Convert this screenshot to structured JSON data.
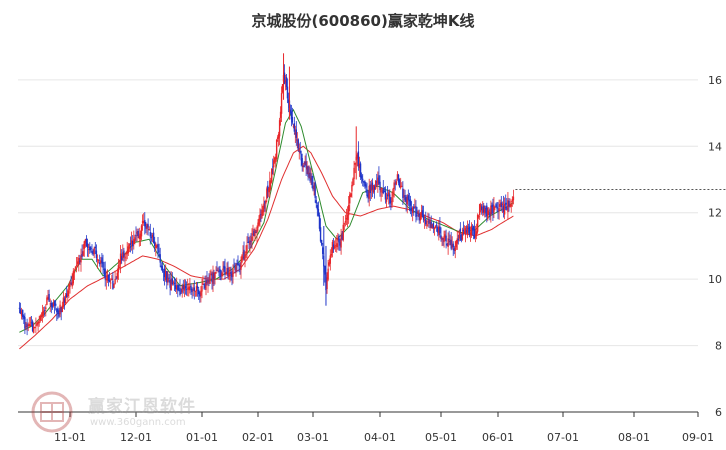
{
  "title": "京城股份(600860)赢家乾坤K线",
  "watermark": {
    "name": "赢家江恩软件",
    "url": "www.360gann.com",
    "logo_icon": "gann-logo-icon"
  },
  "colors": {
    "up": "#e8262a",
    "down": "#1f35c9",
    "ma_short": "#2e8b2e",
    "ma_long": "#e03030",
    "grid": "#e6e6e6",
    "axis": "#333333"
  },
  "chart_data": {
    "type": "candlestick",
    "title": "京城股份(600860)赢家乾坤K线",
    "x_ticks": [
      "11-01",
      "12-01",
      "01-01",
      "02-01",
      "03-01",
      "04-01",
      "05-01",
      "06-01",
      "07-01",
      "08-01",
      "09-01"
    ],
    "y_ticks": [
      6,
      8,
      10,
      12,
      14,
      16
    ],
    "ylim": [
      6,
      17.2
    ],
    "grid": true,
    "last_price_line": 12.7,
    "anchor_closes": [
      {
        "x": 0,
        "y": 9.1
      },
      {
        "x": 6,
        "y": 8.5
      },
      {
        "x": 16,
        "y": 8.6
      },
      {
        "x": 26,
        "y": 9.4
      },
      {
        "x": 36,
        "y": 9.0
      },
      {
        "x": 48,
        "y": 10.0
      },
      {
        "x": 60,
        "y": 11.1
      },
      {
        "x": 70,
        "y": 10.8
      },
      {
        "x": 80,
        "y": 10.0
      },
      {
        "x": 86,
        "y": 9.8
      },
      {
        "x": 92,
        "y": 10.6
      },
      {
        "x": 100,
        "y": 11.0
      },
      {
        "x": 114,
        "y": 11.7
      },
      {
        "x": 124,
        "y": 11.0
      },
      {
        "x": 134,
        "y": 10.0
      },
      {
        "x": 144,
        "y": 9.6
      },
      {
        "x": 154,
        "y": 9.7
      },
      {
        "x": 164,
        "y": 9.6
      },
      {
        "x": 174,
        "y": 10.0
      },
      {
        "x": 186,
        "y": 10.2
      },
      {
        "x": 196,
        "y": 10.2
      },
      {
        "x": 206,
        "y": 10.6
      },
      {
        "x": 216,
        "y": 11.2
      },
      {
        "x": 226,
        "y": 12.0
      },
      {
        "x": 236,
        "y": 13.2
      },
      {
        "x": 242,
        "y": 14.2
      },
      {
        "x": 248,
        "y": 16.2
      },
      {
        "x": 254,
        "y": 15.2
      },
      {
        "x": 260,
        "y": 14.4
      },
      {
        "x": 266,
        "y": 13.6
      },
      {
        "x": 274,
        "y": 13.2
      },
      {
        "x": 280,
        "y": 12.6
      },
      {
        "x": 286,
        "y": 11.0
      },
      {
        "x": 290,
        "y": 9.8
      },
      {
        "x": 296,
        "y": 11.0
      },
      {
        "x": 304,
        "y": 11.2
      },
      {
        "x": 312,
        "y": 12.4
      },
      {
        "x": 318,
        "y": 13.8
      },
      {
        "x": 322,
        "y": 13.2
      },
      {
        "x": 328,
        "y": 12.6
      },
      {
        "x": 338,
        "y": 12.9
      },
      {
        "x": 344,
        "y": 12.6
      },
      {
        "x": 350,
        "y": 12.4
      },
      {
        "x": 356,
        "y": 13.1
      },
      {
        "x": 362,
        "y": 12.5
      },
      {
        "x": 370,
        "y": 12.1
      },
      {
        "x": 380,
        "y": 11.8
      },
      {
        "x": 390,
        "y": 11.6
      },
      {
        "x": 400,
        "y": 11.2
      },
      {
        "x": 408,
        "y": 10.9
      },
      {
        "x": 414,
        "y": 11.3
      },
      {
        "x": 424,
        "y": 11.5
      },
      {
        "x": 430,
        "y": 11.4
      },
      {
        "x": 434,
        "y": 12.2
      },
      {
        "x": 440,
        "y": 12.0
      },
      {
        "x": 450,
        "y": 12.1
      },
      {
        "x": 460,
        "y": 12.2
      },
      {
        "x": 466,
        "y": 12.5
      }
    ],
    "ma_short": [
      {
        "x": 0,
        "y": 8.4
      },
      {
        "x": 12,
        "y": 8.6
      },
      {
        "x": 24,
        "y": 9.0
      },
      {
        "x": 34,
        "y": 9.4
      },
      {
        "x": 44,
        "y": 9.8
      },
      {
        "x": 56,
        "y": 10.6
      },
      {
        "x": 66,
        "y": 10.6
      },
      {
        "x": 76,
        "y": 10.1
      },
      {
        "x": 90,
        "y": 10.5
      },
      {
        "x": 104,
        "y": 11.1
      },
      {
        "x": 118,
        "y": 11.2
      },
      {
        "x": 132,
        "y": 10.4
      },
      {
        "x": 146,
        "y": 9.8
      },
      {
        "x": 164,
        "y": 9.9
      },
      {
        "x": 180,
        "y": 10.0
      },
      {
        "x": 196,
        "y": 10.3
      },
      {
        "x": 212,
        "y": 10.8
      },
      {
        "x": 228,
        "y": 11.7
      },
      {
        "x": 240,
        "y": 13.3
      },
      {
        "x": 250,
        "y": 14.7
      },
      {
        "x": 258,
        "y": 15.1
      },
      {
        "x": 266,
        "y": 14.6
      },
      {
        "x": 278,
        "y": 13.2
      },
      {
        "x": 290,
        "y": 11.6
      },
      {
        "x": 300,
        "y": 11.2
      },
      {
        "x": 312,
        "y": 11.6
      },
      {
        "x": 324,
        "y": 12.6
      },
      {
        "x": 338,
        "y": 12.8
      },
      {
        "x": 352,
        "y": 12.6
      },
      {
        "x": 368,
        "y": 12.1
      },
      {
        "x": 384,
        "y": 11.8
      },
      {
        "x": 400,
        "y": 11.6
      },
      {
        "x": 416,
        "y": 11.4
      },
      {
        "x": 430,
        "y": 11.5
      },
      {
        "x": 444,
        "y": 11.9
      },
      {
        "x": 456,
        "y": 12.1
      },
      {
        "x": 466,
        "y": 12.3
      }
    ],
    "ma_long": [
      {
        "x": 0,
        "y": 7.9
      },
      {
        "x": 14,
        "y": 8.3
      },
      {
        "x": 30,
        "y": 8.8
      },
      {
        "x": 46,
        "y": 9.4
      },
      {
        "x": 62,
        "y": 9.8
      },
      {
        "x": 80,
        "y": 10.1
      },
      {
        "x": 96,
        "y": 10.4
      },
      {
        "x": 112,
        "y": 10.7
      },
      {
        "x": 126,
        "y": 10.6
      },
      {
        "x": 140,
        "y": 10.4
      },
      {
        "x": 156,
        "y": 10.1
      },
      {
        "x": 172,
        "y": 10.0
      },
      {
        "x": 188,
        "y": 10.0
      },
      {
        "x": 204,
        "y": 10.3
      },
      {
        "x": 218,
        "y": 10.9
      },
      {
        "x": 232,
        "y": 11.8
      },
      {
        "x": 246,
        "y": 13.0
      },
      {
        "x": 258,
        "y": 13.8
      },
      {
        "x": 268,
        "y": 14.0
      },
      {
        "x": 276,
        "y": 13.8
      },
      {
        "x": 286,
        "y": 13.2
      },
      {
        "x": 296,
        "y": 12.5
      },
      {
        "x": 308,
        "y": 12.0
      },
      {
        "x": 322,
        "y": 11.9
      },
      {
        "x": 338,
        "y": 12.1
      },
      {
        "x": 352,
        "y": 12.2
      },
      {
        "x": 366,
        "y": 12.1
      },
      {
        "x": 382,
        "y": 11.9
      },
      {
        "x": 398,
        "y": 11.7
      },
      {
        "x": 414,
        "y": 11.4
      },
      {
        "x": 430,
        "y": 11.3
      },
      {
        "x": 446,
        "y": 11.5
      },
      {
        "x": 466,
        "y": 11.9
      }
    ]
  }
}
